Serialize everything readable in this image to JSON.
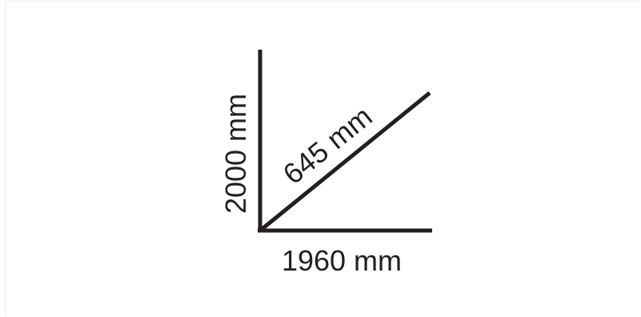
{
  "diagram": {
    "labels": {
      "height": "2000 mm",
      "width": "1960 mm",
      "diagonal": "645 mm"
    },
    "colors": {
      "line": "#231f20",
      "text": "#231f20",
      "background": "#ffffff"
    }
  }
}
